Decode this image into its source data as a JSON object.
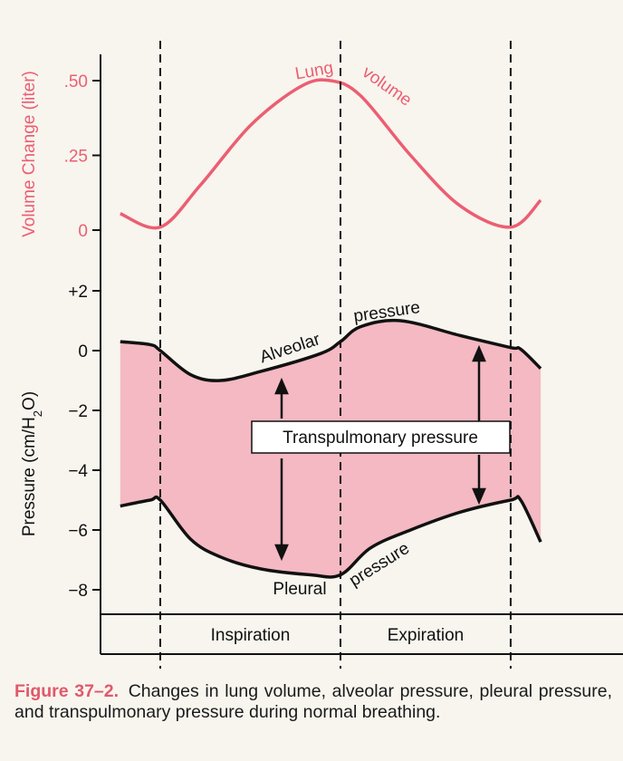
{
  "colors": {
    "volume_curve": "#ec5e72",
    "pressure_band": "#f4b9c2",
    "caption_label": "#e2586a",
    "ink": "#111111",
    "background": "#f7f5ee"
  },
  "chart_data": [
    {
      "type": "line",
      "title": "",
      "ylabel": "Volume Change (liter)",
      "ylim": [
        0,
        0.6
      ],
      "yticks": [
        {
          "value": 0.5,
          "label": ".50"
        },
        {
          "value": 0.25,
          "label": ".25"
        },
        {
          "value": 0,
          "label": "0"
        }
      ],
      "xlim": [
        -0.4,
        3.8
      ],
      "series": [
        {
          "name": "Lung volume",
          "x": [
            -0.4,
            0,
            0.4,
            0.9,
            1.4,
            1.7,
            2.0,
            2.5,
            3.0,
            3.5,
            3.8
          ],
          "y": [
            0.055,
            0.01,
            0.15,
            0.35,
            0.48,
            0.5,
            0.45,
            0.25,
            0.08,
            0.01,
            0.1
          ]
        }
      ],
      "annotations": [
        {
          "text": "Lung",
          "x": 1.3,
          "y": 0.52
        },
        {
          "text": "volume",
          "x": 1.9,
          "y": 0.52
        }
      ]
    },
    {
      "type": "area",
      "title": "",
      "ylabel": "Pressure (cm/H2O)",
      "ylim": [
        -9,
        3
      ],
      "yticks": [
        {
          "value": 2,
          "label": "+2"
        },
        {
          "value": 0,
          "label": "0"
        },
        {
          "value": -2,
          "label": "−2"
        },
        {
          "value": -4,
          "label": "−4"
        },
        {
          "value": -6,
          "label": "−6"
        },
        {
          "value": -8,
          "label": "−8"
        }
      ],
      "xlim": [
        -0.4,
        3.8
      ],
      "series": [
        {
          "name": "Alveolar pressure",
          "x": [
            -0.4,
            -0.1,
            0,
            0.3,
            0.6,
            1.0,
            1.6,
            1.8,
            2.0,
            2.4,
            3.0,
            3.5,
            3.6,
            3.8
          ],
          "y": [
            0.3,
            0.2,
            0.0,
            -0.8,
            -1.0,
            -0.7,
            -0.1,
            0.3,
            0.8,
            1.0,
            0.5,
            0.1,
            0.05,
            -0.6
          ]
        },
        {
          "name": "Pleural pressure",
          "x": [
            -0.4,
            -0.1,
            0,
            0.3,
            0.6,
            1.0,
            1.5,
            1.8,
            2.1,
            2.5,
            3.0,
            3.5,
            3.6,
            3.8
          ],
          "y": [
            -5.2,
            -5.0,
            -5.0,
            -6.3,
            -6.9,
            -7.3,
            -7.5,
            -7.5,
            -6.6,
            -6.0,
            -5.4,
            -5.0,
            -5.0,
            -6.4
          ]
        }
      ],
      "labels": {
        "alveolar_word": "Alveolar",
        "alveolar_pressure_word": "pressure",
        "pleural_word": "Pleural",
        "pleural_pressure_word": "pressure",
        "transpulmonary_box": "Transpulmonary pressure"
      }
    }
  ],
  "phase_bar": {
    "phases": [
      {
        "name": "Inspiration",
        "x_start": 0,
        "x_end": 1.8
      },
      {
        "name": "Expiration",
        "x_start": 1.8,
        "x_end": 3.5
      }
    ],
    "divider_x": [
      0,
      1.8,
      3.5
    ]
  },
  "caption": {
    "label": "Figure 37–2.",
    "text": "Changes in lung volume, alveolar pressure, pleural pressure, and transpulmonary pressure during normal breathing."
  }
}
